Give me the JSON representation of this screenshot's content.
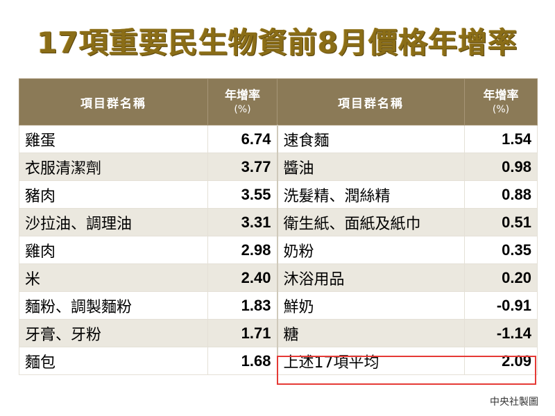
{
  "title": "17項重要民生物資前8月價格年增率",
  "table": {
    "headers": {
      "name": "項目群名稱",
      "rate": "年增率",
      "unit": "(%)"
    },
    "rows": [
      {
        "left_name": "雞蛋",
        "left_value": "6.74",
        "right_name": "速食麵",
        "right_value": "1.54"
      },
      {
        "left_name": "衣服清潔劑",
        "left_value": "3.77",
        "right_name": "醬油",
        "right_value": "0.98"
      },
      {
        "left_name": "豬肉",
        "left_value": "3.55",
        "right_name": "洗髮精、潤絲精",
        "right_value": "0.88"
      },
      {
        "left_name": "沙拉油、調理油",
        "left_value": "3.31",
        "right_name": "衛生紙、面紙及紙巾",
        "right_value": "0.51"
      },
      {
        "left_name": "雞肉",
        "left_value": "2.98",
        "right_name": "奶粉",
        "right_value": "0.35"
      },
      {
        "left_name": "米",
        "left_value": "2.40",
        "right_name": "沐浴用品",
        "right_value": "0.20"
      },
      {
        "left_name": "麵粉、調製麵粉",
        "left_value": "1.83",
        "right_name": "鮮奶",
        "right_value": "-0.91"
      },
      {
        "left_name": "牙膏、牙粉",
        "left_value": "1.71",
        "right_name": "糖",
        "right_value": "-1.14"
      },
      {
        "left_name": "麵包",
        "left_value": "1.68",
        "right_name": "上述17項平均",
        "right_value": "2.09"
      }
    ]
  },
  "colors": {
    "title": "#8a6d17",
    "header_bg": "#8b7a57",
    "negative": "#e41e1e",
    "highlight_border": "#e53935"
  },
  "source": "中央社製圖"
}
